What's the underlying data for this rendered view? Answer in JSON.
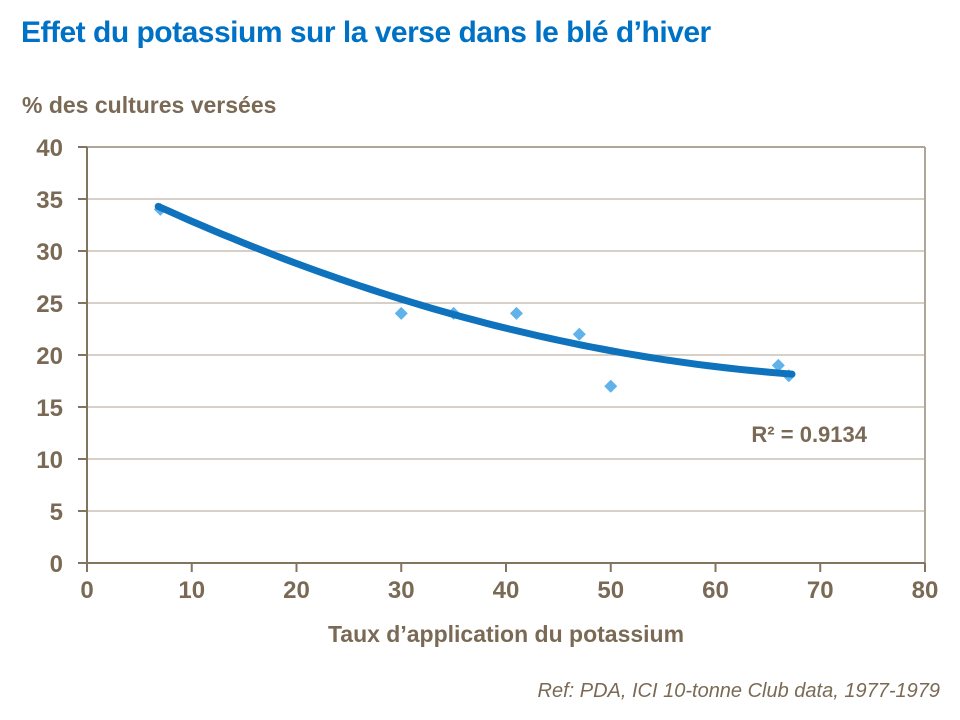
{
  "page": {
    "title": "Effet du potassium sur la verse dans le blé d’hiver",
    "reference": "Ref: PDA, ICI 10-tonne Club data, 1977-1979"
  },
  "colors": {
    "title": "#0072C6",
    "text": "#7A6A55",
    "grid": "#BEB5A7",
    "grid_dark": "#AFA697",
    "axis": "#83745F",
    "marker": "#5FB2EA",
    "trend": "#0E72BC"
  },
  "chart_data": {
    "type": "scatter",
    "title": "Effet du potassium sur la verse dans le blé d’hiver",
    "xlabel": "Taux d’application du potassium",
    "ylabel": "% des cultures versées",
    "xlim": [
      0,
      80
    ],
    "ylim": [
      0,
      40
    ],
    "x_ticks": [
      0,
      10,
      20,
      30,
      40,
      50,
      60,
      70,
      80
    ],
    "y_ticks": [
      0,
      5,
      10,
      15,
      20,
      25,
      30,
      35,
      40
    ],
    "grid": "horizontal-only",
    "legend": "none",
    "points": [
      [
        7,
        34
      ],
      [
        30,
        24
      ],
      [
        35,
        24
      ],
      [
        41,
        24
      ],
      [
        47,
        22
      ],
      [
        50,
        17
      ],
      [
        66,
        19
      ],
      [
        67,
        18
      ]
    ],
    "trendline": {
      "type": "polynomial",
      "degree": 2,
      "coefficients": {
        "a": 0.00316,
        "b": -0.5007,
        "c": 37.55
      },
      "domain": [
        6.8,
        67.3
      ],
      "r_squared": 0.9134,
      "r_squared_label": "R² = 0.9134"
    }
  }
}
